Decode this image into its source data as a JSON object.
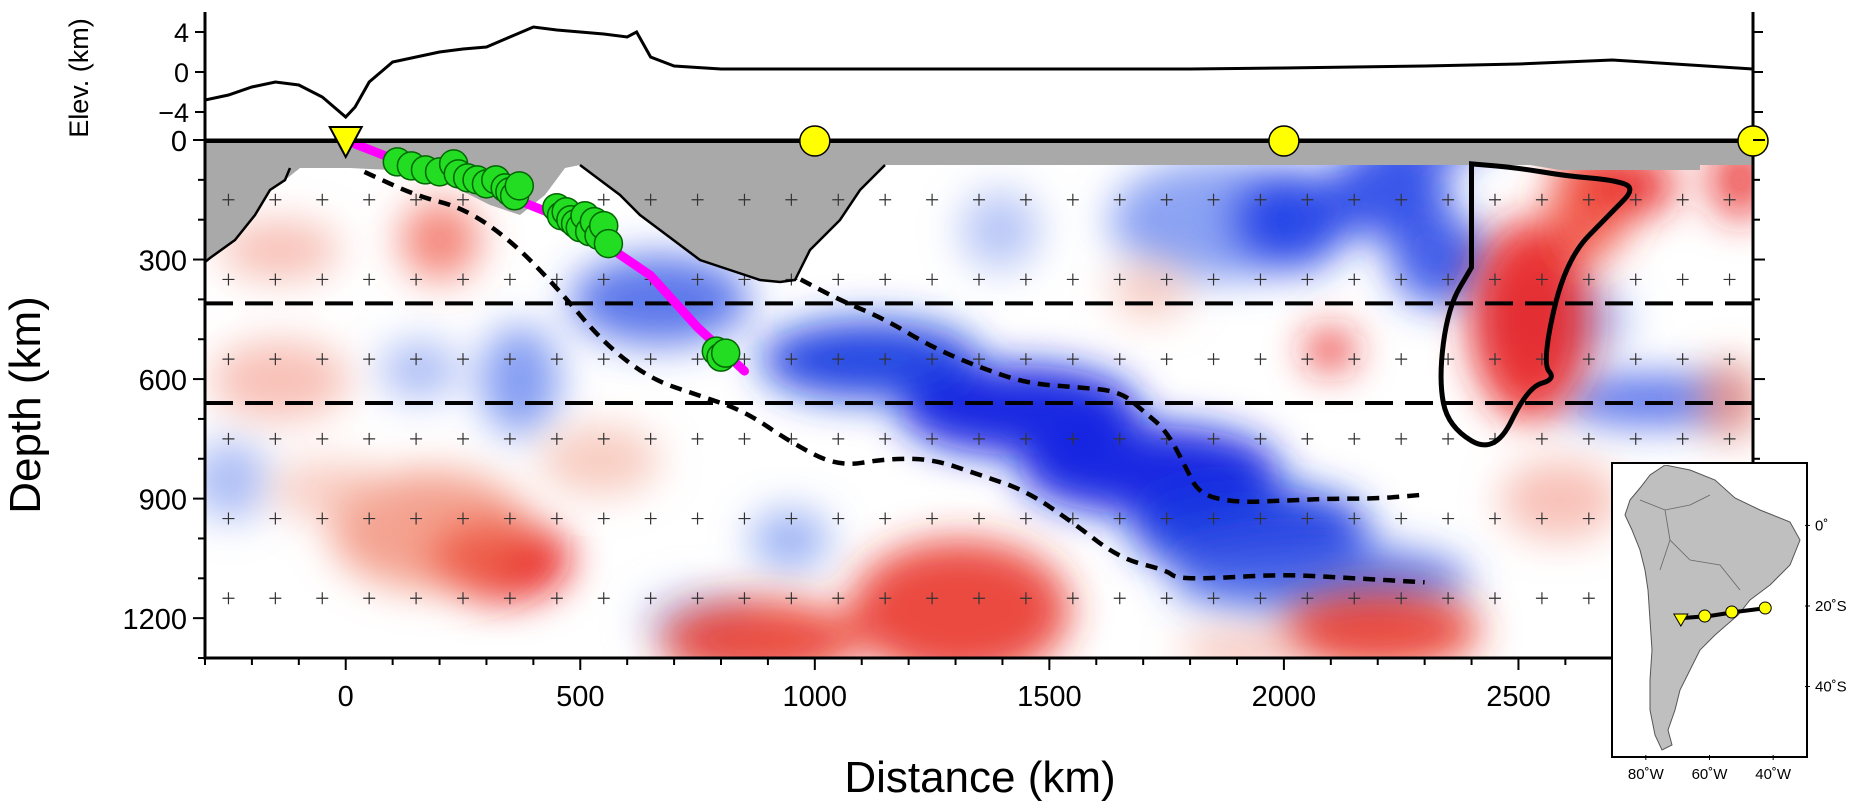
{
  "chart_data": [
    {
      "type": "line",
      "ylabel": "Elev. (km)",
      "ylim": [
        -6,
        6
      ],
      "yticks": [
        -4,
        0,
        4
      ],
      "ytick_labels": [
        "−4",
        "0",
        "4"
      ],
      "xlim": [
        -300,
        3000
      ],
      "series": [
        {
          "x": [
            -300,
            -250,
            -200,
            -150,
            -100,
            -50,
            0,
            20,
            50,
            100,
            150,
            200,
            250,
            300,
            350,
            400,
            450,
            500,
            550,
            600,
            620,
            650,
            700,
            800,
            1000,
            1200,
            1500,
            1800,
            2000,
            2300,
            2500,
            2600,
            2700,
            2800,
            2900,
            3000
          ],
          "y": [
            -2.8,
            -2.3,
            -1.5,
            -1.0,
            -1.3,
            -2.5,
            -4.5,
            -3.5,
            -1.0,
            1.0,
            1.5,
            2.0,
            2.3,
            2.5,
            3.5,
            4.5,
            4.2,
            4.0,
            3.8,
            3.5,
            4.0,
            1.5,
            0.6,
            0.3,
            0.3,
            0.3,
            0.3,
            0.3,
            0.4,
            0.6,
            0.8,
            1.0,
            1.2,
            0.9,
            0.6,
            0.3
          ]
        }
      ]
    },
    {
      "type": "heatmap",
      "xlabel": "Distance (km)",
      "ylabel": "Depth (km)",
      "xlim": [
        -300,
        3000
      ],
      "ylim": [
        1300,
        0
      ],
      "xticks": [
        0,
        500,
        1000,
        1500,
        2000,
        2500
      ],
      "xtick_labels": [
        "0",
        "500",
        "1000",
        "1500",
        "2000",
        "2500"
      ],
      "yticks": [
        0,
        300,
        600,
        900,
        1200
      ],
      "ytick_labels": [
        "0",
        "300",
        "600",
        "900",
        "1200"
      ],
      "discontinuities_km": [
        410,
        660
      ],
      "station_marker_km": 0,
      "profile_points_km": [
        1000,
        2000,
        3000
      ],
      "slab_line": {
        "x": [
          20,
          150,
          300,
          450,
          550,
          650,
          750,
          850
        ],
        "y": [
          10,
          70,
          120,
          190,
          260,
          340,
          470,
          580
        ]
      },
      "earthquakes": {
        "x": [
          110,
          140,
          170,
          200,
          230,
          240,
          260,
          280,
          300,
          320,
          340,
          350,
          360,
          370,
          450,
          460,
          470,
          480,
          490,
          500,
          510,
          520,
          530,
          540,
          550,
          560,
          790,
          800,
          810
        ],
        "y": [
          55,
          65,
          75,
          80,
          60,
          85,
          95,
          100,
          110,
          100,
          120,
          130,
          140,
          115,
          170,
          190,
          180,
          200,
          210,
          220,
          190,
          230,
          205,
          240,
          215,
          260,
          530,
          545,
          535
        ]
      },
      "anomaly_contours": [
        {
          "name": "fast_slab_upper",
          "x": [
            40,
            150,
            250,
            350,
            450,
            550,
            650,
            750,
            850,
            950,
            1050,
            1150,
            1250,
            1350,
            1450,
            1550,
            1650,
            1750,
            1770,
            1850,
            2000,
            2150,
            2300
          ],
          "y": [
            80,
            140,
            170,
            250,
            370,
            510,
            600,
            640,
            680,
            760,
            820,
            800,
            800,
            840,
            880,
            960,
            1050,
            1080,
            1100,
            1100,
            1090,
            1100,
            1110
          ]
        },
        {
          "name": "fast_slab_lower",
          "x": [
            970,
            1050,
            1150,
            1250,
            1350,
            1450,
            1550,
            1650,
            1700,
            1750,
            1790,
            1820,
            1900,
            2000,
            2100,
            2200,
            2300
          ],
          "y": [
            350,
            400,
            450,
            520,
            570,
            610,
            620,
            630,
            680,
            730,
            820,
            890,
            910,
            905,
            900,
            900,
            890
          ]
        },
        {
          "name": "slow_anomaly",
          "x": [
            2400,
            2500,
            2600,
            2700,
            2750,
            2700,
            2600,
            2550,
            2580,
            2520,
            2450,
            2350,
            2330,
            2350,
            2400
          ],
          "y": [
            60,
            70,
            90,
            100,
            120,
            180,
            300,
            560,
            600,
            620,
            790,
            720,
            600,
            420,
            320
          ]
        }
      ]
    },
    {
      "type": "scatter",
      "xticks": [
        -80,
        -60,
        -40
      ],
      "xtick_labels": [
        "80˚W",
        "60˚W",
        "40˚W"
      ],
      "yticks": [
        0,
        -20,
        -40
      ],
      "ytick_labels": [
        "0˚",
        "20˚S",
        "40˚S"
      ],
      "xlim": [
        -90,
        -30
      ],
      "ylim": [
        -57,
        15
      ],
      "profile_line": {
        "x": [
          -69,
          -60,
          -52,
          -42
        ],
        "y": [
          -23,
          -22.5,
          -21.5,
          -20.5
        ]
      },
      "station": {
        "x": -69,
        "y": -23
      },
      "points": {
        "x": [
          -61.5,
          -53,
          -42.5
        ],
        "y": [
          -22.5,
          -21.5,
          -20.5
        ]
      }
    }
  ]
}
